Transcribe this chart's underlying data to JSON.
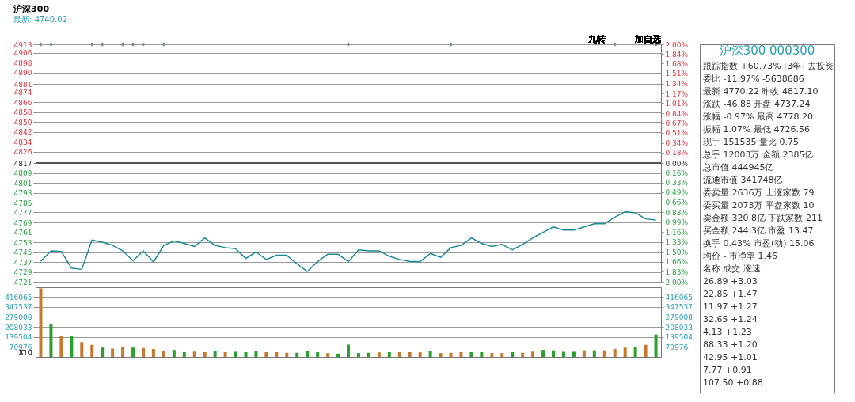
{
  "chart_data": [
    {
      "type": "line",
      "title": "沪深300",
      "subtitle": "最新: 4740.02",
      "categories": [
        null,
        null,
        null,
        null,
        null,
        null,
        null,
        null,
        null,
        null,
        null,
        null,
        null,
        null,
        null,
        null,
        null,
        null,
        null,
        null,
        null,
        null,
        null,
        null,
        null,
        null,
        null,
        null,
        null,
        null,
        null,
        null,
        null,
        null,
        null,
        null,
        null,
        null,
        null,
        null,
        null,
        null,
        null,
        null,
        null,
        null,
        null,
        null,
        null,
        null,
        null,
        null,
        null,
        null,
        null,
        null,
        null,
        null,
        null,
        null,
        null
      ],
      "series": [
        {
          "type": "line",
          "color": "#1a8a96",
          "values": [
            4737.5,
            4746,
            4745.5,
            4732,
            4731,
            4754.7,
            4753,
            4750.4,
            4746,
            4738,
            4746,
            4737,
            4750.4,
            4754,
            4752,
            4749.5,
            4756.5,
            4750.4,
            4748.6,
            4747.7,
            4739.8,
            4745,
            4739,
            4742.4,
            4742.4,
            4735.4,
            4729.3,
            4737.2,
            4743.3,
            4743.3,
            4737.2,
            4746.8,
            4746,
            4746,
            4741.6,
            4739,
            4737.5,
            4737.2,
            4743.9,
            4740.7,
            4748.6,
            4750.4,
            4756.5,
            4752,
            4749.5,
            4751.2,
            4746.8,
            4751.2,
            4756.5,
            4760.9,
            4765.3,
            4762.7,
            4762.7,
            4765.3,
            4767.9,
            4767.9,
            4773.2,
            4777.6,
            4776.7,
            4771.8,
            4770.9
          ]
        },
        {
          "type": "scatter",
          "color": "#7f8c8d",
          "marker": "diamond",
          "values": [
            4913,
            4913,
            null,
            null,
            null,
            4913,
            4913,
            null,
            4913,
            4913,
            4913,
            null,
            4913,
            null,
            null,
            null,
            null,
            null,
            null,
            null,
            null,
            null,
            null,
            null,
            null,
            null,
            null,
            null,
            null,
            null,
            4913,
            null,
            null,
            null,
            null,
            null,
            null,
            null,
            null,
            null,
            4913,
            null,
            null,
            null,
            null,
            null,
            null,
            null,
            null,
            null,
            null,
            null,
            null,
            null,
            null,
            null,
            4913,
            null,
            null,
            null,
            4913
          ]
        }
      ],
      "ylim": [
        4721,
        4913
      ],
      "yticks": [
        4913,
        4906,
        4898,
        4890,
        4881,
        4874,
        4866,
        4858,
        4850,
        4842,
        4834,
        4826,
        4817,
        4809,
        4801,
        4793,
        4785,
        4777,
        4769,
        4761,
        4753,
        4745,
        4737,
        4729,
        4721
      ],
      "y2lim": [
        -2,
        2
      ],
      "y2ticks": [
        {
          "value": 2,
          "label": "2.00%"
        },
        {
          "value": 1.84,
          "label": "1.84%"
        },
        {
          "value": 1.68,
          "label": "1.68%"
        },
        {
          "value": 1.51,
          "label": "1.51%"
        },
        {
          "value": 1.34,
          "label": "1.34%"
        },
        {
          "value": 1.17,
          "label": "1.17%"
        },
        {
          "value": 1.01,
          "label": "1.01%"
        },
        {
          "value": 0.84,
          "label": "0.84%"
        },
        {
          "value": 0.67,
          "label": "0.67%"
        },
        {
          "value": 0.51,
          "label": "0.51%"
        },
        {
          "value": 0.34,
          "label": "0.34%"
        },
        {
          "value": 0.18,
          "label": "0.18%"
        },
        {
          "value": 0,
          "label": "0.00%"
        },
        {
          "value": -0.16,
          "label": "0.16%"
        },
        {
          "value": -0.33,
          "label": "0.33%"
        },
        {
          "value": -0.49,
          "label": "0.49%"
        },
        {
          "value": -0.66,
          "label": "0.66%"
        },
        {
          "value": -0.83,
          "label": "0.83%"
        },
        {
          "value": -0.99,
          "label": "0.99%"
        },
        {
          "value": -1.16,
          "label": "1.16%"
        },
        {
          "value": -1.33,
          "label": "1.33%"
        },
        {
          "value": -1.5,
          "label": "1.50%"
        },
        {
          "value": -1.66,
          "label": "1.66%"
        },
        {
          "value": -1.83,
          "label": "1.83%"
        },
        {
          "value": -2,
          "label": "2.00%"
        }
      ],
      "ref_lines": [
        {
          "axis": "y",
          "value": 4817,
          "color": "#555555"
        }
      ],
      "grid": "y",
      "annotations": [
        "九转",
        "加自选"
      ]
    },
    {
      "type": "bar",
      "categories": [
        null,
        null,
        null,
        null,
        null,
        null,
        null,
        null,
        null,
        null,
        null,
        null,
        null,
        null,
        null,
        null,
        null,
        null,
        null,
        null,
        null,
        null,
        null,
        null,
        null,
        null,
        null,
        null,
        null,
        null,
        null,
        null,
        null,
        null,
        null,
        null,
        null,
        null,
        null,
        null,
        null,
        null,
        null,
        null,
        null,
        null,
        null,
        null,
        null,
        null,
        null,
        null,
        null,
        null,
        null,
        null,
        null,
        null,
        null,
        null,
        null
      ],
      "values": [
        477000,
        230000,
        145000,
        145000,
        103000,
        84000,
        65000,
        58000,
        71000,
        65000,
        62000,
        55000,
        42000,
        49000,
        33000,
        37000,
        33000,
        43000,
        33000,
        36000,
        33000,
        42000,
        33000,
        33000,
        29000,
        29000,
        42000,
        33000,
        27000,
        23000,
        86000,
        27000,
        29000,
        32000,
        33000,
        33000,
        33000,
        32000,
        39000,
        27000,
        29000,
        33000,
        33000,
        33000,
        27000,
        27000,
        33000,
        29000,
        37000,
        49000,
        46000,
        36000,
        36000,
        46000,
        46000,
        46000,
        55000,
        65000,
        71000,
        84000,
        156000
      ],
      "colors": [
        "#c8782c",
        "#2ca02c",
        "#c8782c",
        "#2ca02c",
        "#c8782c",
        "#c8782c",
        "#2ca02c",
        "#c8782c",
        "#c8782c",
        "#2ca02c",
        "#c8782c",
        "#c8782c",
        "#c8782c",
        "#2ca02c",
        "#2ca02c",
        "#c8782c",
        "#c8782c",
        "#2ca02c",
        "#c8782c",
        "#2ca02c",
        "#2ca02c",
        "#2ca02c",
        "#c8782c",
        "#c8782c",
        "#c8782c",
        "#2ca02c",
        "#2ca02c",
        "#2ca02c",
        "#c8782c",
        "#2ca02c",
        "#2ca02c",
        "#2ca02c",
        "#2ca02c",
        "#c8782c",
        "#2ca02c",
        "#c8782c",
        "#c8782c",
        "#c8782c",
        "#2ca02c",
        "#c8782c",
        "#c8782c",
        "#c8782c",
        "#2ca02c",
        "#2ca02c",
        "#c8782c",
        "#c8782c",
        "#2ca02c",
        "#c8782c",
        "#c8782c",
        "#2ca02c",
        "#2ca02c",
        "#2ca02c",
        "#2ca02c",
        "#c8782c",
        "#2ca02c",
        "#c8782c",
        "#c8782c",
        "#c8782c",
        "#2ca02c",
        "#c8782c",
        "#2ca02c"
      ],
      "ylim": [
        0,
        484593
      ],
      "yticks": [
        70976,
        139504,
        208033,
        279008,
        347537,
        416065
      ],
      "y2lim": [
        0,
        484593
      ],
      "y2ticks": [
        70976,
        139504,
        208033,
        279008,
        347537,
        416065
      ],
      "grid": "y",
      "annotations": [
        "X10"
      ]
    },
    {
      "type": "other",
      "title": "沪深300 000300",
      "annotations": [
        "跟踪指数 +60.73% [3年] 去投资",
        "委比 -11.97% -5638686",
        "最新 4770.22 昨收 4817.10",
        "涨跌 -46.88 开盘 4737.24",
        "涨幅 -0.97% 最高 4778.20",
        "振幅 1.07% 最低 4726.56",
        "现手 151535 量比 0.75",
        "总手 12003万 金额 2385亿",
        "总市值 444945亿",
        "流通市值 341748亿",
        "委卖量 2636万 上涨家数 79",
        "委买量 2073万 平盘家数 10",
        "卖金额 320.8亿 下跌家数 211",
        "买金额 244.3亿 市盈 13.47",
        "换手 0.43% 市盈(动) 15.06",
        "均价 - 市净率 1.46",
        "名称 成交 涨速",
        "26.89 +3.03",
        "22.85 +1.47",
        "11.97 +1.27",
        "32.65 +1.24",
        "4.13 +1.23",
        "88.33 +1.20",
        "42.95 +1.01",
        "7.77 +0.91",
        "107.50 +0.88"
      ]
    }
  ]
}
